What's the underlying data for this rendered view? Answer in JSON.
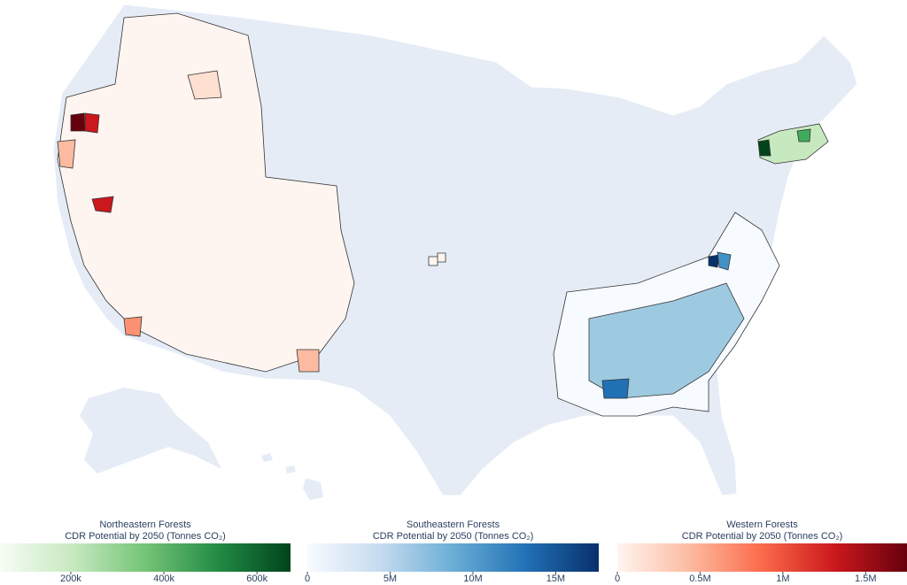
{
  "colorbars": [
    {
      "title": "Northeastern Forests",
      "subtitle": "CDR Potential by 2050 (Tonnes CO₂)",
      "range": [
        48000,
        672000
      ],
      "ticks": [
        {
          "value": 200000,
          "label": "200k"
        },
        {
          "value": 400000,
          "label": "400k"
        },
        {
          "value": 600000,
          "label": "600k"
        }
      ],
      "colors": [
        "#f7fcf5",
        "#c7e9c0",
        "#74c476",
        "#238b45",
        "#00441b"
      ]
    },
    {
      "title": "Southeastern Forests",
      "subtitle": "CDR Potential by 2050 (Tonnes CO₂)",
      "range": [
        0,
        17600000
      ],
      "ticks": [
        0,
        {
          "value": 5000000,
          "label": "5M"
        },
        {
          "value": 10000000,
          "label": "10M"
        },
        {
          "value": 15000000,
          "label": "15M"
        }
      ],
      "colors": [
        "#f7fbff",
        "#c6dbef",
        "#6baed6",
        "#2171b5",
        "#08306b"
      ]
    },
    {
      "title": "Western Forests",
      "subtitle": "CDR Potential by 2050 (Tonnes CO₂)",
      "range": [
        0,
        1750000
      ],
      "ticks": [
        0,
        {
          "value": 500000,
          "label": "0.5M"
        },
        {
          "value": 1000000,
          "label": "1M"
        },
        {
          "value": 1500000,
          "label": "1.5M"
        }
      ],
      "colors": [
        "#fff5f0",
        "#fcbba1",
        "#fb6a4a",
        "#cb181d",
        "#67000d"
      ]
    }
  ]
}
